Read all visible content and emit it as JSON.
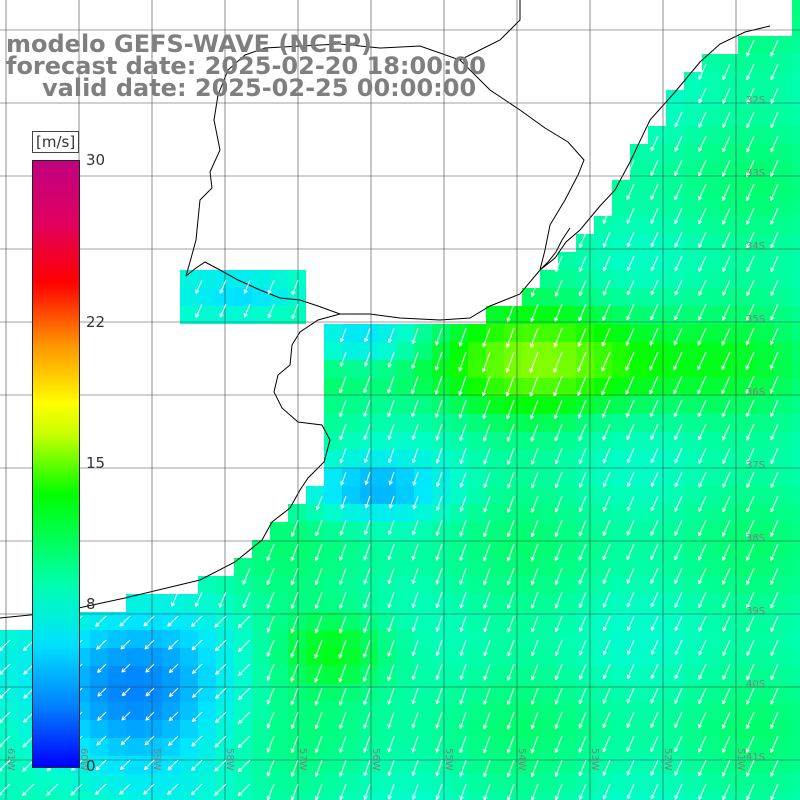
{
  "header": {
    "model": "modelo GEFS-WAVE (NCEP)",
    "forecast": "forecast date: 2025-02-20 18:00:00",
    "valid": "valid date: 2025-02-25 00:00:00"
  },
  "colorbar": {
    "unit": "[m/s]",
    "ticks": [
      {
        "label": "30",
        "value": 30
      },
      {
        "label": "22",
        "value": 22
      },
      {
        "label": "15",
        "value": 15
      },
      {
        "label": "8",
        "value": 8
      },
      {
        "label": "0",
        "value": 0
      }
    ]
  },
  "lat_labels": [
    "32S",
    "33S",
    "34S",
    "35S",
    "36S",
    "37S",
    "38S",
    "39S",
    "40S",
    "41S"
  ],
  "lon_labels": [
    "61W",
    "60W",
    "59W",
    "58W",
    "57W",
    "56W",
    "55W",
    "54W",
    "53W",
    "52W",
    "51W"
  ],
  "colors": {
    "low": "#0000ff",
    "mid": "#00e0ff",
    "high": "#00ff00",
    "max": "#c00080",
    "land": "#ffffff",
    "arrow": "#ffffff"
  }
}
